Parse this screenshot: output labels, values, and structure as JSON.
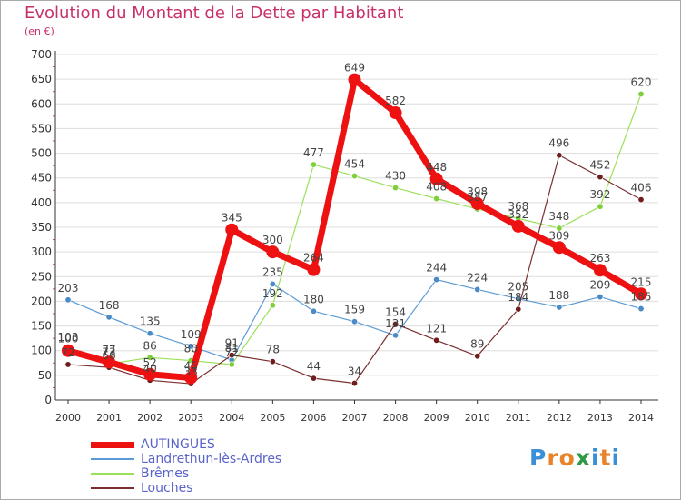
{
  "header": {
    "title": "Evolution du Montant de la Dette par Habitant",
    "subtitle": "(en €)"
  },
  "logo": {
    "text": "Proxiti",
    "colors": [
      "#3a8fd6",
      "#e8832c",
      "#e8832c",
      "#2f9a45",
      "#3a8fd6",
      "#e8832c",
      "#3a8fd6"
    ]
  },
  "colors": {
    "title": "#c8306b",
    "legend_text": "#5a63c8",
    "axis": "#333333",
    "grid": "#dddddd"
  },
  "chart_data": {
    "type": "line",
    "title": "Evolution du Montant de la Dette par Habitant",
    "subtitle": "(en €)",
    "xlabel": "",
    "ylabel": "",
    "x": [
      "2000",
      "2001",
      "2002",
      "2003",
      "2004",
      "2005",
      "2006",
      "2007",
      "2008",
      "2009",
      "2010",
      "2011",
      "2012",
      "2013",
      "2014"
    ],
    "ylim": [
      0,
      700
    ],
    "yticks": [
      0,
      50,
      100,
      150,
      200,
      250,
      300,
      350,
      400,
      450,
      500,
      550,
      600,
      650,
      700
    ],
    "grid": true,
    "legend": "bottom-left",
    "series": [
      {
        "name": "Landrethun-lès-Ardres",
        "color": "#5b9bd5",
        "dot": "#4a8ac7",
        "width": 1.2,
        "marker": 3.2,
        "values": [
          203,
          168,
          135,
          109,
          81,
          235,
          180,
          159,
          131,
          244,
          224,
          205,
          188,
          209,
          185
        ]
      },
      {
        "name": "Brêmes",
        "color": "#9be05a",
        "dot": "#7fcf3a",
        "width": 1.2,
        "marker": 3.2,
        "values": [
          103,
          73,
          86,
          80,
          72,
          192,
          477,
          454,
          430,
          408,
          387,
          368,
          348,
          392,
          620
        ]
      },
      {
        "name": "Louches",
        "color": "#7a2e2e",
        "dot": "#6e1c1c",
        "width": 1.2,
        "marker": 3.2,
        "values": [
          72,
          66,
          40,
          33,
          91,
          78,
          44,
          34,
          154,
          121,
          89,
          184,
          496,
          452,
          406
        ]
      },
      {
        "name": "AUTINGUES",
        "color": "#ee1111",
        "dot": "#ee1111",
        "width": 7,
        "marker": 7,
        "values": [
          100,
          77,
          52,
          45,
          345,
          300,
          264,
          649,
          582,
          448,
          398,
          352,
          309,
          263,
          215
        ]
      }
    ],
    "value_labels": [
      {
        "series": "Landrethun-lès-Ardres",
        "values": [
          203,
          168,
          135,
          109,
          81,
          235,
          180,
          159,
          131,
          244,
          224,
          205,
          188,
          209,
          185
        ]
      },
      {
        "series": "Brêmes",
        "values": [
          103,
          73,
          86,
          80,
          72,
          192,
          477,
          454,
          430,
          408,
          387,
          368,
          348,
          392,
          620
        ]
      },
      {
        "series": "Louches",
        "values": [
          72,
          66,
          40,
          33,
          91,
          78,
          44,
          34,
          154,
          121,
          89,
          184,
          496,
          452,
          406
        ]
      },
      {
        "series": "AUTINGUES",
        "values": [
          100,
          77,
          52,
          45,
          345,
          300,
          264,
          649,
          582,
          448,
          398,
          352,
          309,
          263,
          215
        ]
      }
    ]
  },
  "legend": {
    "items": [
      {
        "label": "AUTINGUES",
        "color": "#ee1111",
        "thickness": 7
      },
      {
        "label": "Landrethun-lès-Ardres",
        "color": "#5b9bd5",
        "thickness": 1.5
      },
      {
        "label": "Brêmes",
        "color": "#9be05a",
        "thickness": 1.5
      },
      {
        "label": "Louches",
        "color": "#7a2e2e",
        "thickness": 1.5
      }
    ]
  }
}
